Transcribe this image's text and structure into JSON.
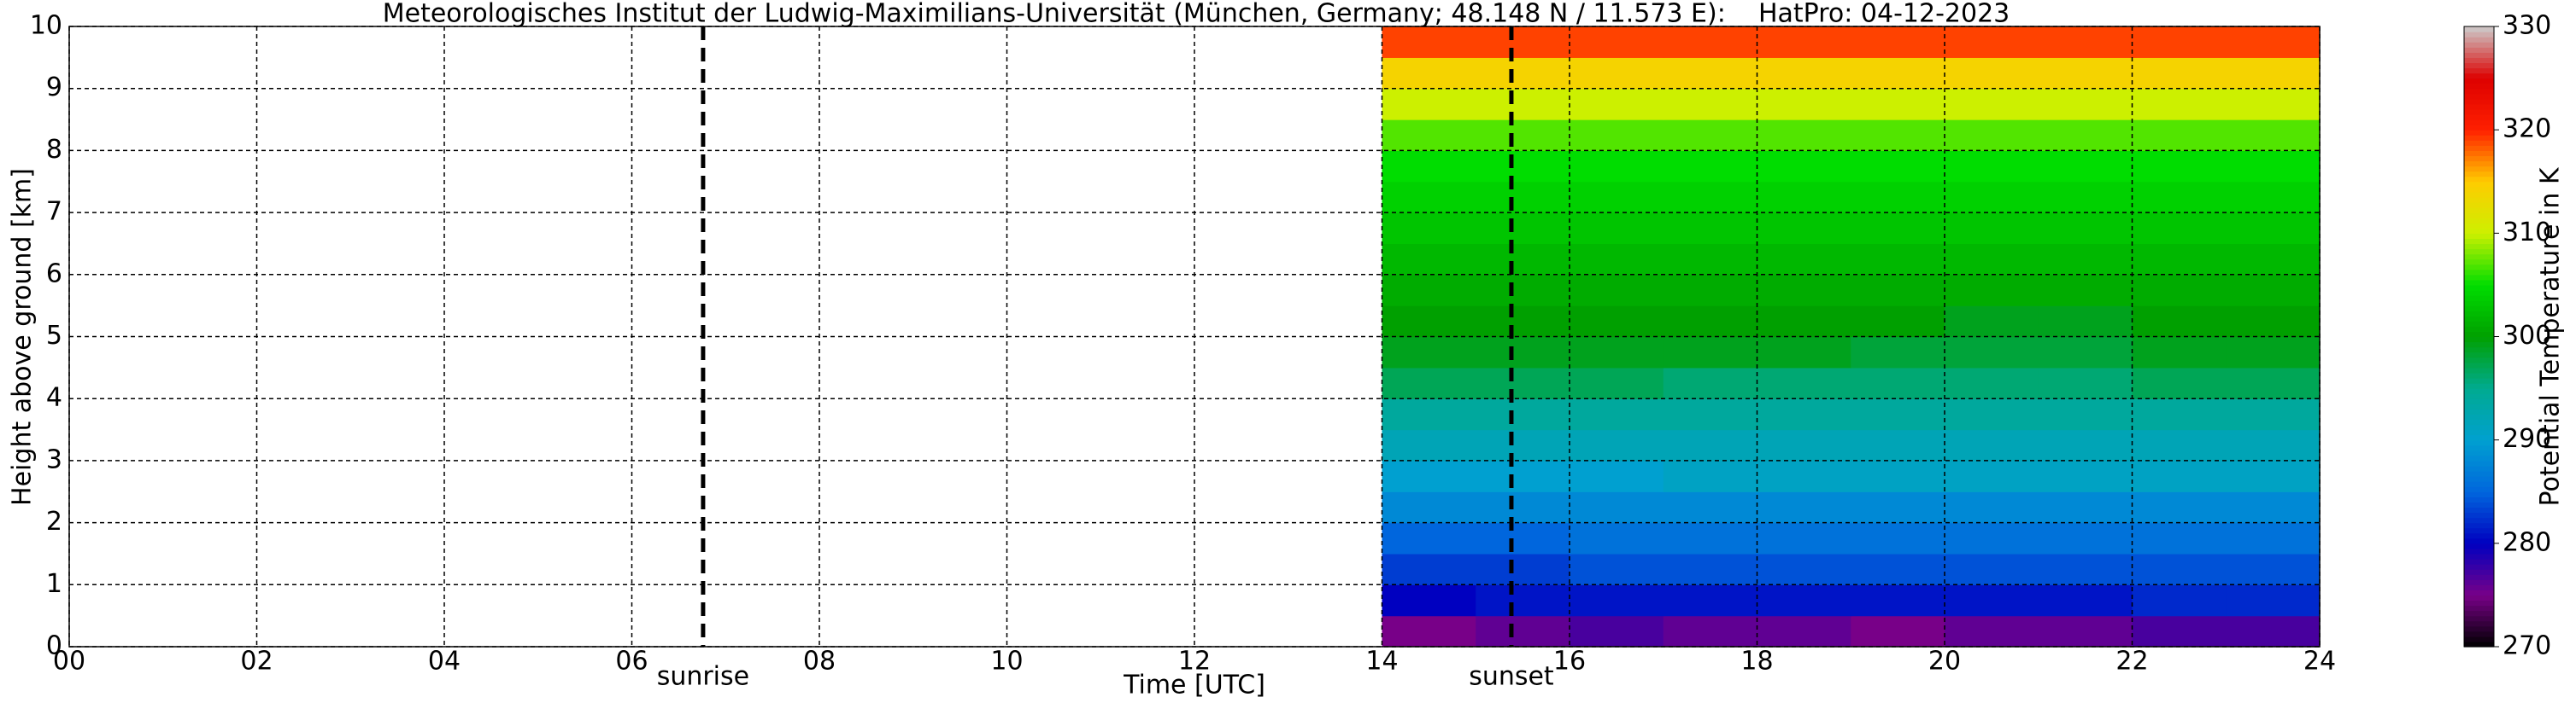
{
  "chart_data": {
    "type": "heatmap",
    "title": "Meteorologisches Institut der Ludwig-Maximilians-Universität (München, Germany; 48.148 N / 11.573 E):    HatPro: 04-12-2023",
    "x_label": "Time [UTC]",
    "y_label": "Height above ground [km]",
    "colorbar_label": "Potential Temperature in K",
    "xlim": [
      0,
      24
    ],
    "xticks": [
      {
        "value": 0,
        "label": "00"
      },
      {
        "value": 2,
        "label": "02"
      },
      {
        "value": 4,
        "label": "04"
      },
      {
        "value": 6,
        "label": "06"
      },
      {
        "value": 8,
        "label": "08"
      },
      {
        "value": 10,
        "label": "10"
      },
      {
        "value": 12,
        "label": "12"
      },
      14,
      16,
      18,
      20,
      22,
      24
    ],
    "ylim": [
      0,
      10
    ],
    "yticks": [
      0,
      1,
      2,
      3,
      4,
      5,
      6,
      7,
      8,
      9,
      10
    ],
    "clim": [
      270,
      330
    ],
    "cticks": [
      270,
      280,
      290,
      300,
      310,
      320,
      330
    ],
    "colormap": [
      "#000000",
      "#780088",
      "#0000c0",
      "#0066dd",
      "#00a0d0",
      "#00aa90",
      "#00a000",
      "#00dd00",
      "#ccf000",
      "#ffcc00",
      "#ff2000",
      "#dd0000",
      "#cccccc"
    ],
    "grid": true,
    "x_edges": [
      14,
      15,
      16,
      17,
      18,
      19,
      20,
      21,
      22,
      23,
      24
    ],
    "y_edges": [
      0,
      0.5,
      1,
      1.5,
      2,
      2.5,
      3,
      3.5,
      4,
      4.5,
      5,
      5.5,
      6,
      6.5,
      7,
      7.5,
      8,
      8.5,
      9,
      9.5,
      10
    ],
    "z": [
      [
        275,
        276,
        277,
        276,
        276,
        275,
        276,
        276,
        277,
        277
      ],
      [
        280,
        281,
        281,
        281,
        281,
        281,
        281,
        281,
        282,
        282
      ],
      [
        283,
        283,
        284,
        284,
        284,
        284,
        284,
        284,
        284,
        284
      ],
      [
        285,
        285,
        286,
        286,
        286,
        286,
        286,
        286,
        286,
        286
      ],
      [
        288,
        288,
        288,
        288,
        288,
        288,
        288,
        288,
        288,
        288
      ],
      [
        290,
        290,
        290,
        291,
        291,
        291,
        291,
        291,
        291,
        291
      ],
      [
        292,
        292,
        292,
        292,
        292,
        292,
        292,
        292,
        292,
        292
      ],
      [
        294,
        294,
        294,
        294,
        294,
        294,
        294,
        294,
        294,
        294
      ],
      [
        297,
        297,
        297,
        296,
        296,
        296,
        296,
        296,
        297,
        297
      ],
      [
        299,
        299,
        299,
        299,
        299,
        298,
        298,
        298,
        299,
        299
      ],
      [
        300,
        300,
        300,
        300,
        300,
        300,
        299,
        299,
        300,
        300
      ],
      [
        301,
        301,
        301,
        301,
        301,
        301,
        301,
        301,
        301,
        301
      ],
      [
        302,
        302,
        302,
        302,
        302,
        302,
        302,
        302,
        302,
        302
      ],
      [
        303,
        303,
        303,
        303,
        303,
        303,
        303,
        303,
        303,
        303
      ],
      [
        304,
        304,
        304,
        304,
        304,
        304,
        304,
        304,
        304,
        304
      ],
      [
        305,
        305,
        305,
        305,
        305,
        305,
        305,
        305,
        305,
        305
      ],
      [
        307,
        307,
        307,
        307,
        307,
        307,
        307,
        307,
        307,
        307
      ],
      [
        310,
        310,
        310,
        310,
        310,
        310,
        310,
        310,
        310,
        310
      ],
      [
        314,
        314,
        314,
        314,
        314,
        314,
        314,
        314,
        314,
        314
      ],
      [
        319,
        319,
        319,
        319,
        319,
        319,
        319,
        319,
        319,
        319
      ]
    ],
    "annotations": [
      {
        "text": "sunrise",
        "x": 6.76
      },
      {
        "text": "sunset",
        "x": 15.38
      }
    ]
  }
}
